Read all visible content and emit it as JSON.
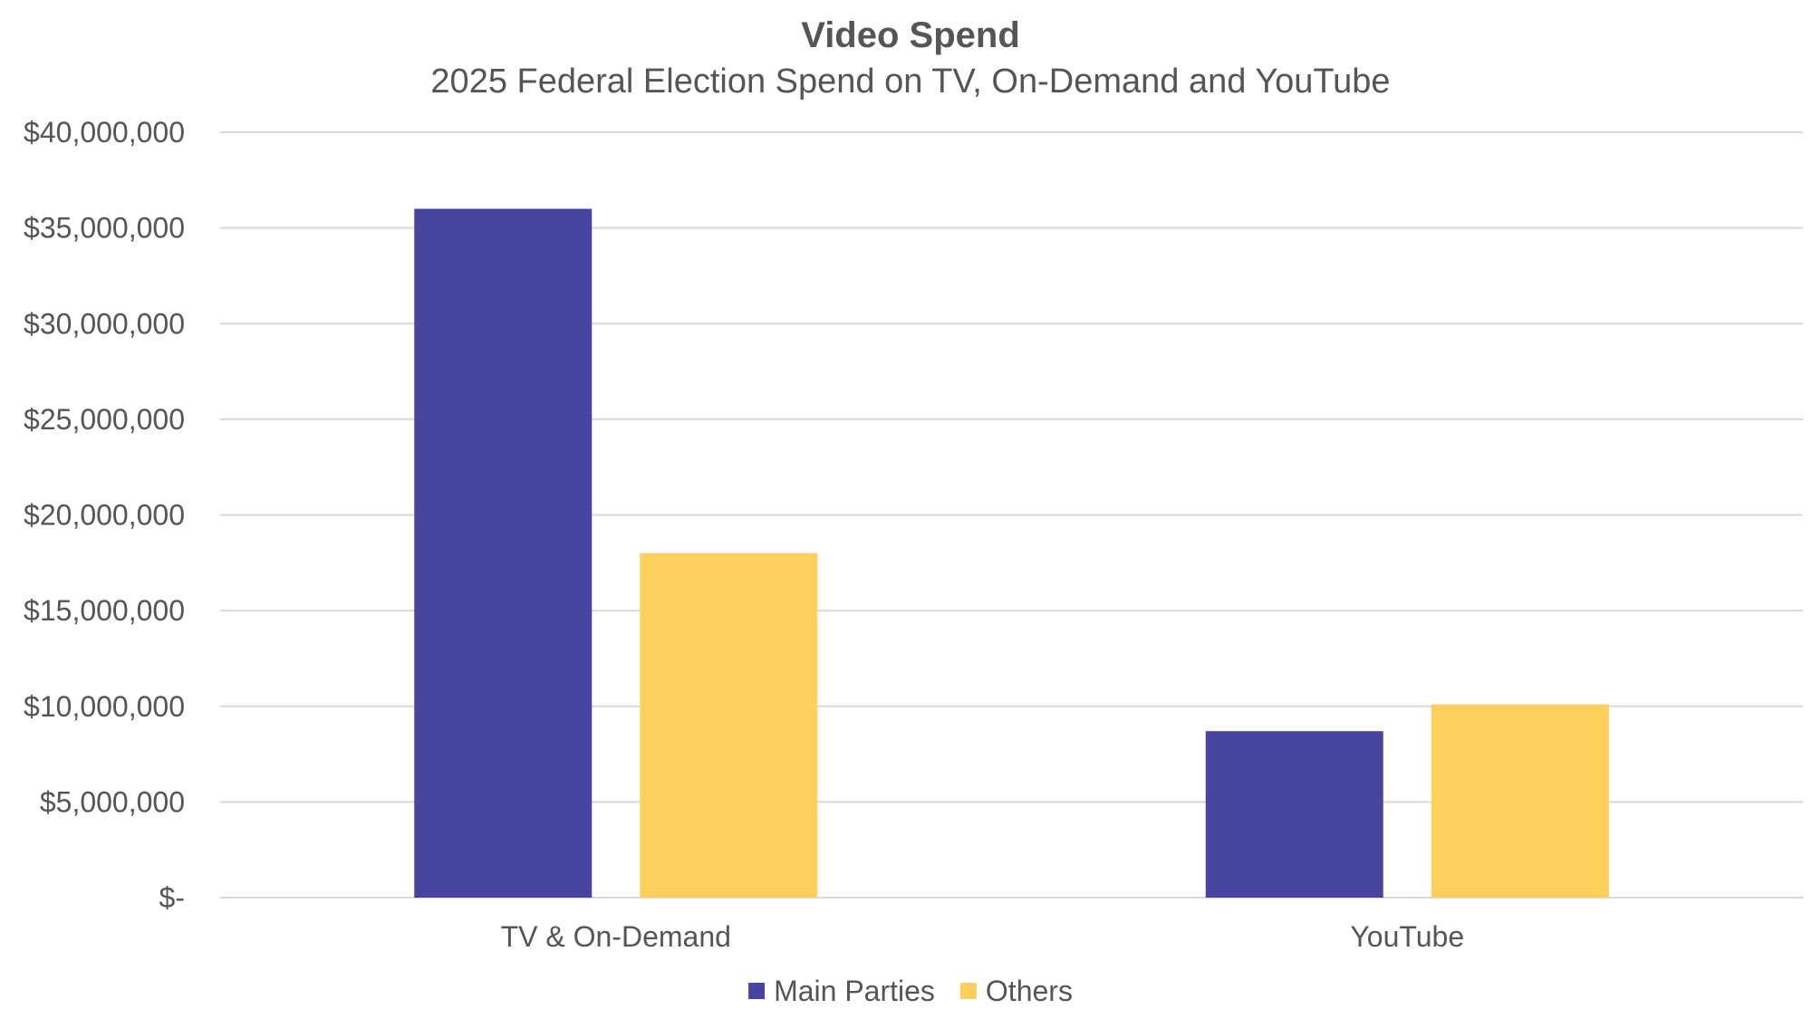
{
  "chart_data": {
    "type": "bar",
    "title": "Video Spend",
    "subtitle": "2025 Federal Election Spend on TV, On-Demand and YouTube",
    "xlabel": "",
    "ylabel": "",
    "categories": [
      "TV & On-Demand",
      "YouTube"
    ],
    "series": [
      {
        "name": "Main Parties",
        "color": "#4845a0",
        "values": [
          36000000,
          8700000
        ]
      },
      {
        "name": "Others",
        "color": "#fdcf5c",
        "values": [
          18000000,
          10100000
        ]
      }
    ],
    "ylim": [
      0,
      40000000
    ],
    "y_ticks": [
      {
        "value": 0,
        "label": "$-"
      },
      {
        "value": 5000000,
        "label": "$5,000,000"
      },
      {
        "value": 10000000,
        "label": "$10,000,000"
      },
      {
        "value": 15000000,
        "label": "$15,000,000"
      },
      {
        "value": 20000000,
        "label": "$20,000,000"
      },
      {
        "value": 25000000,
        "label": "$25,000,000"
      },
      {
        "value": 30000000,
        "label": "$30,000,000"
      },
      {
        "value": 35000000,
        "label": "$35,000,000"
      },
      {
        "value": 40000000,
        "label": "$40,000,000"
      }
    ],
    "grid": true,
    "legend_position": "bottom-center"
  }
}
